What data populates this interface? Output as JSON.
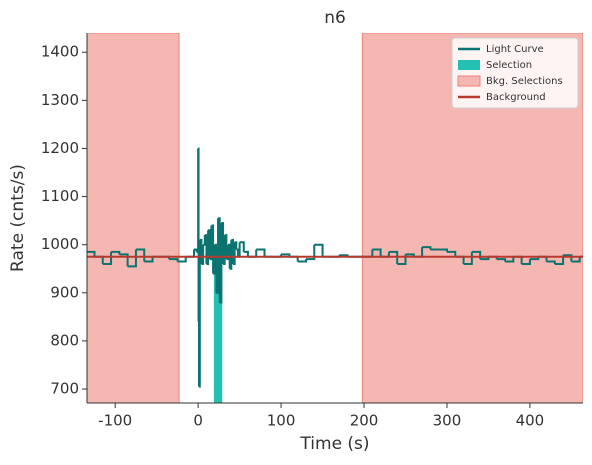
{
  "chart_data": {
    "type": "line",
    "title": "n6",
    "x_label": "Time (s)",
    "y_label": "Rate (cnts/s)",
    "xlim": [
      -134,
      464
    ],
    "ylim": [
      671,
      1440
    ],
    "xticks": [
      -100,
      0,
      100,
      200,
      300,
      400
    ],
    "yticks": [
      700,
      800,
      900,
      1000,
      1100,
      1200,
      1300,
      1400
    ],
    "legend": "upper right",
    "series": [
      {
        "name": "Light Curve",
        "color": "#0b7370",
        "style": "step",
        "x": [
          -134,
          -125,
          -115,
          -105,
          -95,
          -85,
          -75,
          -65,
          -55,
          -45,
          -35,
          -25,
          -15,
          -5,
          -2,
          0,
          0.5,
          1,
          2,
          4,
          6,
          8,
          10,
          12,
          14,
          16,
          18,
          20,
          22,
          24,
          26,
          28,
          30,
          32,
          34,
          36,
          38,
          40,
          42,
          44,
          46,
          48,
          50,
          55,
          60,
          70,
          80,
          90,
          100,
          110,
          120,
          130,
          140,
          150,
          160,
          170,
          180,
          190,
          200,
          210,
          220,
          230,
          240,
          250,
          260,
          270,
          280,
          290,
          300,
          310,
          320,
          330,
          340,
          350,
          360,
          370,
          380,
          390,
          400,
          410,
          420,
          430,
          440,
          450,
          460
        ],
        "values": [
          985,
          975,
          960,
          985,
          980,
          955,
          990,
          965,
          975,
          975,
          970,
          965,
          975,
          990,
          985,
          1200,
          840,
          705,
          1010,
          960,
          1000,
          1020,
          960,
          1030,
          970,
          1040,
          940,
          1000,
          900,
          1055,
          880,
          1045,
          960,
          1020,
          970,
          1000,
          950,
          1010,
          960,
          1005,
          990,
          975,
          1005,
          985,
          975,
          990,
          975,
          975,
          980,
          975,
          965,
          970,
          1000,
          975,
          975,
          978,
          975,
          975,
          975,
          990,
          975,
          985,
          960,
          980,
          975,
          995,
          990,
          990,
          985,
          975,
          960,
          985,
          970,
          975,
          970,
          965,
          975,
          960,
          970,
          975,
          965,
          960,
          978,
          965,
          975
        ]
      },
      {
        "name": "Selection",
        "color": "#22c1b2",
        "style": "fill",
        "x": [
          19,
          29
        ],
        "values": [
          960,
          960
        ]
      },
      {
        "name": "Bkg. Selections",
        "color": "#f5b7b1",
        "edge_color": "#e8857c",
        "style": "span",
        "spans": [
          [
            -134,
            -23
          ],
          [
            198,
            464
          ]
        ]
      },
      {
        "name": "Background",
        "color": "#b83a2e",
        "style": "line",
        "x": [
          -134,
          464
        ],
        "values": [
          975,
          975
        ]
      }
    ]
  }
}
